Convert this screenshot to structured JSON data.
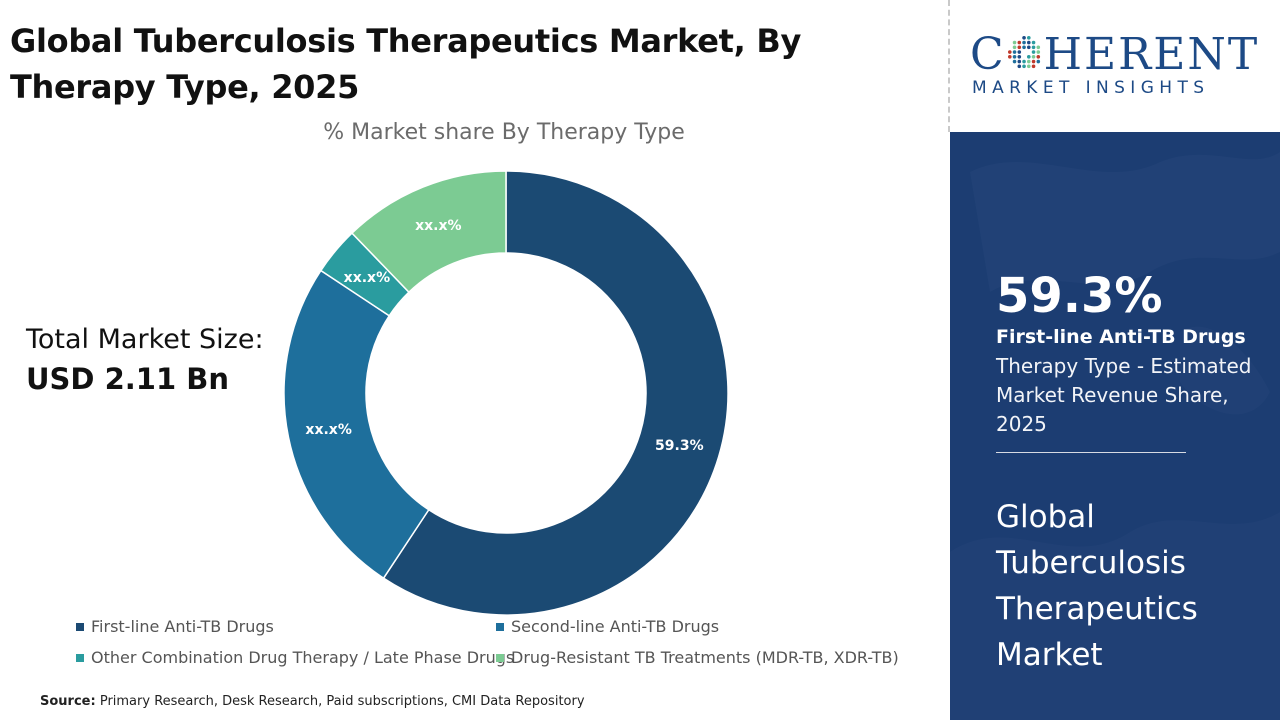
{
  "title": "Global Tuberculosis Therapeutics Market, By Therapy Type, 2025",
  "market_size": {
    "label": "Total Market Size:",
    "value": "USD 2.11 Bn"
  },
  "source": {
    "label": "Source:",
    "text": "Primary Research, Desk Research, Paid subscriptions, CMI Data Repository"
  },
  "brand": {
    "name_left": "C",
    "name_right": "HERENT",
    "tagline": "MARKET INSIGHTS"
  },
  "highlight": {
    "value": "59.3%",
    "segment": "First-line Anti-TB Drugs",
    "description": "Therapy Type - Estimated Market Revenue Share, 2025",
    "market_name": "Global Tuberculosis Therapeutics Market"
  },
  "colors": {
    "brand_blue": "#1d4a86",
    "panel_blue": "#1c3d72"
  },
  "chart_data": {
    "type": "pie",
    "variant": "donut",
    "title": "% Market share By Therapy Type",
    "legend_position": "bottom",
    "categories": [
      "First-line Anti-TB Drugs",
      "Second-line Anti-TB Drugs",
      "Other Combination Drug Therapy / Late Phase Drugs",
      "Drug-Resistant TB Treatments (MDR-TB, XDR-TB)"
    ],
    "values": [
      59.3,
      25.0,
      3.5,
      12.2
    ],
    "labels": [
      "59.3%",
      "xx.x%",
      "xx.x%",
      "xx.x%"
    ],
    "colors": [
      "#1b4a73",
      "#1e6f9c",
      "#2a9c9f",
      "#7ccb93"
    ]
  }
}
